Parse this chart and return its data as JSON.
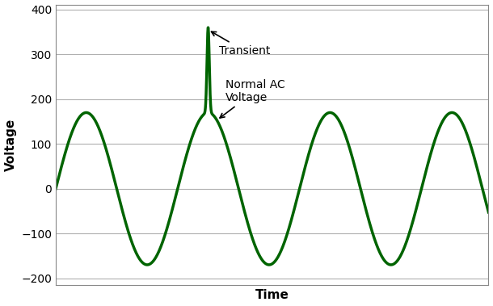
{
  "line_color": "#006400",
  "line_width": 2.5,
  "amplitude": 170,
  "background_color": "#ffffff",
  "grid_color": "#b0b0b0",
  "ylabel": "Voltage",
  "xlabel": "Time",
  "ylim": [
    -215,
    410
  ],
  "yticks": [
    -200,
    -100,
    0,
    100,
    200,
    300,
    400
  ],
  "xlabel_fontsize": 11,
  "ylabel_fontsize": 11,
  "tick_fontsize": 10,
  "annotation_fontsize": 10,
  "transient_label": "Transient",
  "normal_label": "Normal AC\nVoltage",
  "spine_color": "#888888"
}
